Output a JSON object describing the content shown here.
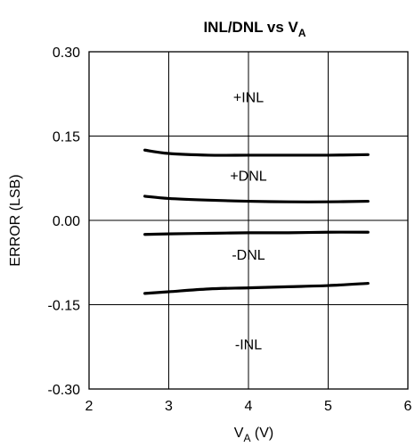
{
  "chart_data": {
    "type": "line",
    "title": "INL/DNL vs V",
    "title_sub": "A",
    "xlabel": "V",
    "xlabel_sub": "A",
    "xlabel_unit": " (V)",
    "ylabel": "ERROR (LSB)",
    "xlim": [
      2,
      6
    ],
    "ylim": [
      -0.3,
      0.3
    ],
    "x_ticks": [
      2,
      3,
      4,
      5,
      6
    ],
    "x_tick_labels": [
      "2",
      "3",
      "4",
      "5",
      "6"
    ],
    "y_ticks": [
      0.3,
      0.15,
      0.0,
      -0.15,
      -0.3
    ],
    "y_tick_labels": [
      "0.30",
      "0.15",
      "0.00",
      "-0.15",
      "-0.30"
    ],
    "grid": true,
    "series": [
      {
        "x": [
          2.7,
          3.0,
          3.5,
          4.0,
          4.5,
          5.0,
          5.5
        ],
        "values": [
          0.125,
          0.119,
          0.116,
          0.116,
          0.116,
          0.116,
          0.117
        ]
      },
      {
        "x": [
          2.7,
          3.0,
          3.5,
          4.0,
          4.5,
          5.0,
          5.5
        ],
        "values": [
          0.043,
          0.039,
          0.036,
          0.034,
          0.033,
          0.033,
          0.034
        ]
      },
      {
        "x": [
          2.7,
          3.0,
          3.5,
          4.0,
          4.5,
          5.0,
          5.5
        ],
        "values": [
          -0.025,
          -0.024,
          -0.023,
          -0.022,
          -0.022,
          -0.021,
          -0.021
        ]
      },
      {
        "x": [
          2.7,
          3.0,
          3.5,
          4.0,
          4.5,
          5.0,
          5.5
        ],
        "values": [
          -0.13,
          -0.127,
          -0.122,
          -0.12,
          -0.118,
          -0.116,
          -0.112
        ]
      }
    ],
    "annotations": [
      {
        "text": "+INL",
        "x": 4.0,
        "y": 0.22
      },
      {
        "text": "+DNL",
        "x": 4.0,
        "y": 0.08
      },
      {
        "text": "-DNL",
        "x": 4.0,
        "y": -0.06
      },
      {
        "text": "-INL",
        "x": 4.0,
        "y": -0.22
      }
    ]
  }
}
